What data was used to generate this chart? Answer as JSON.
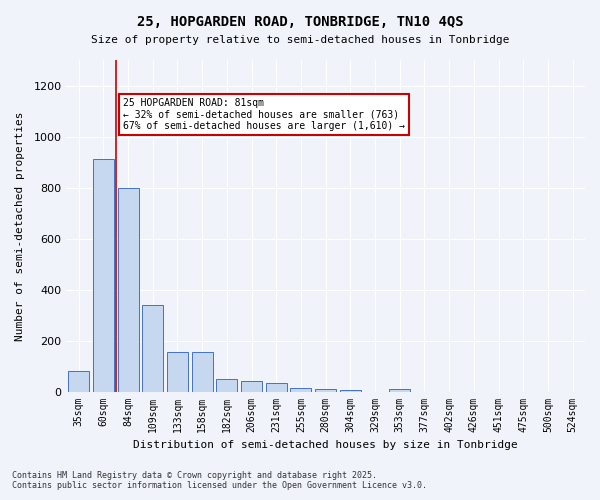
{
  "title1": "25, HOPGARDEN ROAD, TONBRIDGE, TN10 4QS",
  "title2": "Size of property relative to semi-detached houses in Tonbridge",
  "xlabel": "Distribution of semi-detached houses by size in Tonbridge",
  "ylabel": "Number of semi-detached properties",
  "categories": [
    "35sqm",
    "60sqm",
    "84sqm",
    "109sqm",
    "133sqm",
    "158sqm",
    "182sqm",
    "206sqm",
    "231sqm",
    "255sqm",
    "280sqm",
    "304sqm",
    "329sqm",
    "353sqm",
    "377sqm",
    "402sqm",
    "426sqm",
    "451sqm",
    "475sqm",
    "500sqm",
    "524sqm"
  ],
  "values": [
    80,
    910,
    800,
    340,
    155,
    155,
    50,
    40,
    35,
    15,
    10,
    5,
    0,
    10,
    0,
    0,
    0,
    0,
    0,
    0,
    0
  ],
  "bar_color": "#c5d8f0",
  "bar_edge_color": "#4472c4",
  "annotation_box_text": "25 HOPGARDEN ROAD: 81sqm\n← 32% of semi-detached houses are smaller (763)\n67% of semi-detached houses are larger (1,610) →",
  "annotation_box_color": "#ffffff",
  "annotation_box_edge_color": "#cc0000",
  "vline_x_index": 1.5,
  "vline_color": "#cc0000",
  "footer1": "Contains HM Land Registry data © Crown copyright and database right 2025.",
  "footer2": "Contains public sector information licensed under the Open Government Licence v3.0.",
  "ylim": [
    0,
    1300
  ],
  "yticks": [
    0,
    200,
    400,
    600,
    800,
    1000,
    1200
  ],
  "background_color": "#f0f4fa"
}
